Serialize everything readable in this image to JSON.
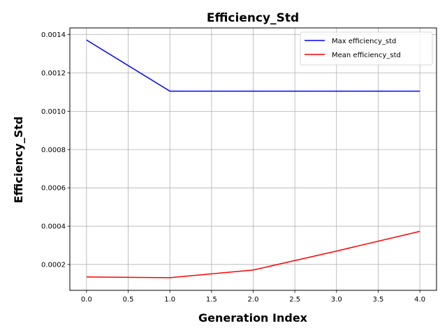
{
  "chart_data": {
    "type": "line",
    "title": "Efficiency_Std",
    "xlabel": "Generation Index",
    "ylabel": "Efficiency_Std",
    "x": [
      0,
      1,
      2,
      3,
      4
    ],
    "xlim": [
      -0.2,
      4.2
    ],
    "ylim": [
      6.5e-05,
      0.001435
    ],
    "xticks": [
      0.0,
      0.5,
      1.0,
      1.5,
      2.0,
      2.5,
      3.0,
      3.5,
      4.0
    ],
    "xtick_labels": [
      "0.0",
      "0.5",
      "1.0",
      "1.5",
      "2.0",
      "2.5",
      "3.0",
      "3.5",
      "4.0"
    ],
    "yticks": [
      0.0002,
      0.0004,
      0.0006,
      0.0008,
      0.001,
      0.0012,
      0.0014
    ],
    "ytick_labels": [
      "0.0002",
      "0.0004",
      "0.0006",
      "0.0008",
      "0.0010",
      "0.0012",
      "0.0014"
    ],
    "grid": true,
    "legend_position": "top-right",
    "series": [
      {
        "name": "Max efficiency_std",
        "color": "#0000ff",
        "values": [
          0.001372,
          0.001105,
          0.001105,
          0.001105,
          0.001105
        ]
      },
      {
        "name": "Mean efficiency_std",
        "color": "#ff0000",
        "values": [
          0.000135,
          0.000131,
          0.000171,
          0.00027,
          0.000373
        ]
      }
    ]
  }
}
